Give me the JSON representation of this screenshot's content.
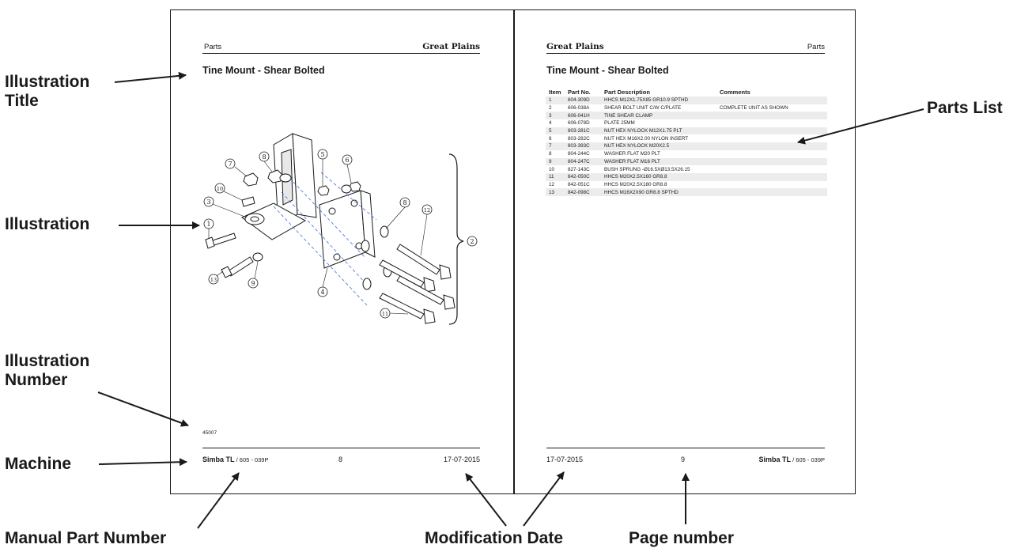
{
  "left_page": {
    "header_left": "Parts",
    "header_right": "Great Plains",
    "title": "Tine Mount - Shear Bolted",
    "illustration_number": "45007",
    "footer_machine": "Simba TL",
    "footer_part": " / 605 - 039P",
    "footer_page": "8",
    "footer_date": "17-07-2015",
    "balloons": [
      "1",
      "2",
      "3",
      "4",
      "5",
      "6",
      "7",
      "8",
      "9",
      "10",
      "11",
      "12",
      "13"
    ]
  },
  "right_page": {
    "header_left": "Great Plains",
    "header_right": "Parts",
    "title": "Tine Mount - Shear Bolted",
    "columns": [
      "Item",
      "Part No.",
      "Part Description",
      "Comments"
    ],
    "rows": [
      {
        "item": "1",
        "part": "604-309D",
        "desc": "HHCS M12X1.75X85 GR10.9 SPTHD",
        "comment": ""
      },
      {
        "item": "2",
        "part": "606-038A",
        "desc": "SHEAR BOLT UNIT C/W C/PLATE",
        "comment": "COMPLETE UNIT AS SHOWN"
      },
      {
        "item": "3",
        "part": "606-041H",
        "desc": "TINE SHEAR CLAMP",
        "comment": ""
      },
      {
        "item": "4",
        "part": "606-078D",
        "desc": "PLATE 25MM",
        "comment": ""
      },
      {
        "item": "5",
        "part": "803-281C",
        "desc": "NUT HEX NYLOCK M12X1.75 PLT",
        "comment": ""
      },
      {
        "item": "6",
        "part": "803-282C",
        "desc": "NUT HEX M16X2.00 NYLON INSERT",
        "comment": ""
      },
      {
        "item": "7",
        "part": "803-393C",
        "desc": "NUT HEX NYLOCK M20X2.5",
        "comment": ""
      },
      {
        "item": "8",
        "part": "804-244C",
        "desc": "WASHER FLAT M20 PLT",
        "comment": ""
      },
      {
        "item": "9",
        "part": "804-247C",
        "desc": "WASHER FLAT M16 PLT",
        "comment": ""
      },
      {
        "item": "10",
        "part": "827-143C",
        "desc": "BUSH SPRUNG -Ø16.5XØ13.5X26.15",
        "comment": ""
      },
      {
        "item": "11",
        "part": "842-050C",
        "desc": "HHCS M20X2.5X160 GR8.8",
        "comment": ""
      },
      {
        "item": "12",
        "part": "842-051C",
        "desc": "HHCS M20X2.5X180 GR8.8",
        "comment": ""
      },
      {
        "item": "13",
        "part": "842-098C",
        "desc": "HHCS M16X2X90 GR8.8 SPTHD",
        "comment": ""
      }
    ],
    "footer_date": "17-07-2015",
    "footer_page": "9",
    "footer_machine": "Simba TL",
    "footer_part": " / 605 - 039P"
  },
  "callouts": {
    "illustration_title": "Illustration\nTitle",
    "illustration": "Illustration",
    "illustration_number": "Illustration\nNumber",
    "machine": "Machine",
    "manual_part_number": "Manual Part Number",
    "modification_date": "Modification Date",
    "page_number": "Page number",
    "parts_list": "Parts List"
  }
}
